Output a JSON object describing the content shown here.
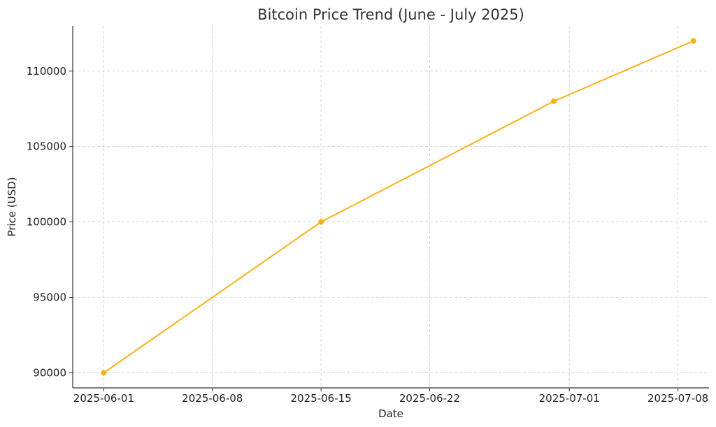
{
  "chart_data": {
    "type": "line",
    "title": "Bitcoin Price Trend (June - July 2025)",
    "xlabel": "Date",
    "ylabel": "Price (USD)",
    "grid": true,
    "x_ticks": [
      "2025-06-01",
      "2025-06-08",
      "2025-06-15",
      "2025-06-22",
      "2025-07-01",
      "2025-07-08"
    ],
    "y_ticks": [
      90000,
      95000,
      100000,
      105000,
      110000
    ],
    "xlim": [
      "2025-05-30",
      "2025-07-10"
    ],
    "ylim": [
      89000,
      113000
    ],
    "series": [
      {
        "color": "#FBB117",
        "marker": "circle",
        "points": [
          {
            "x": "2025-06-01",
            "y": 90000
          },
          {
            "x": "2025-06-15",
            "y": 100000
          },
          {
            "x": "2025-06-30",
            "y": 108000
          },
          {
            "x": "2025-07-09",
            "y": 112000
          }
        ]
      }
    ]
  }
}
